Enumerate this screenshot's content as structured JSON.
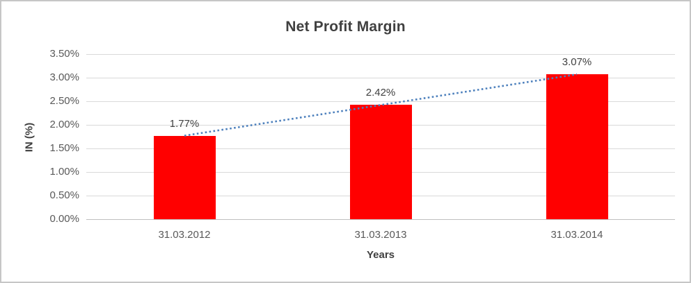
{
  "chart_data": {
    "type": "bar",
    "title": "Net Profit Margin",
    "xlabel": "Years",
    "ylabel": "IN (%)",
    "categories": [
      "31.03.2012",
      "31.03.2013",
      "31.03.2014"
    ],
    "values": [
      1.77,
      2.42,
      3.07
    ],
    "data_labels": [
      "1.77%",
      "2.42%",
      "3.07%"
    ],
    "ylim": [
      0,
      3.5
    ],
    "y_ticks": [
      {
        "value": 0.0,
        "label": "0.00%"
      },
      {
        "value": 0.5,
        "label": "0.50%"
      },
      {
        "value": 1.0,
        "label": "1.00%"
      },
      {
        "value": 1.5,
        "label": "1.50%"
      },
      {
        "value": 2.0,
        "label": "2.00%"
      },
      {
        "value": 2.5,
        "label": "2.50%"
      },
      {
        "value": 3.0,
        "label": "3.00%"
      },
      {
        "value": 3.5,
        "label": "3.50%"
      }
    ],
    "grid": true,
    "legend_position": "none",
    "trendline": {
      "type": "linear",
      "style": "dotted"
    },
    "colors": {
      "bar": "#ff0000",
      "trendline": "#4e81bd",
      "gridline": "#d9d9d9",
      "axis_line": "#bfbfbf",
      "tick_text": "#595959",
      "title_text": "#404040",
      "frame_border": "#c6c6c6"
    }
  }
}
